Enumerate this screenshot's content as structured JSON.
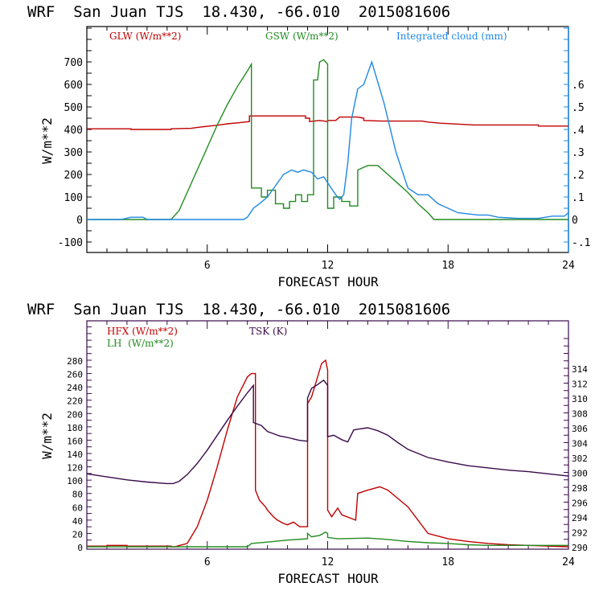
{
  "chart_data": [
    {
      "type": "line",
      "title": "WRF  San Juan TJS  18.430, -66.010  2015081606",
      "xlabel": "FORECAST HOUR",
      "ylabel": "W/m**2",
      "xlim": [
        0,
        24
      ],
      "ylim": [
        -150,
        850
      ],
      "y2lim": [
        -0.15,
        0.85
      ],
      "x_ticks": [
        "6",
        "12",
        "18",
        "24"
      ],
      "x_tick_values": [
        6,
        12,
        18,
        24
      ],
      "y_ticks": [
        "-100",
        "0",
        "100",
        "200",
        "300",
        "400",
        "500",
        "600",
        "700"
      ],
      "y_tick_values": [
        -100,
        0,
        100,
        200,
        300,
        400,
        500,
        600,
        700
      ],
      "y2_ticks": [
        "-.1",
        "0",
        ".1",
        ".2",
        ".3",
        ".4",
        ".5",
        ".6"
      ],
      "y2_tick_values": [
        -0.1,
        0,
        0.1,
        0.2,
        0.3,
        0.4,
        0.5,
        0.6
      ],
      "grid": false,
      "legend_position": "top",
      "colors": {
        "GLW": "#c00000",
        "GSW": "#228b22",
        "cloud": "#1e88e5",
        "axis": "#000000",
        "right_axis": "#1e88e5"
      },
      "series": [
        {
          "name": "GLW (W/m**2)",
          "key": "GLW",
          "axis": "left",
          "x": [
            0,
            2.2,
            2.2,
            4.2,
            4.2,
            5.2,
            5.6,
            6.1,
            6.6,
            7.0,
            7.6,
            8.1,
            8.1,
            10.9,
            10.9,
            11.1,
            11.1,
            11.6,
            12.0,
            12.0,
            12.4,
            12.6,
            13.5,
            13.8,
            13.8,
            14.7,
            16.7,
            17.0,
            17.6,
            19.3,
            22.5,
            22.5,
            24
          ],
          "y": [
            403,
            403,
            400,
            400,
            403,
            405,
            410,
            415,
            420,
            425,
            430,
            435,
            460,
            460,
            450,
            450,
            435,
            440,
            435,
            440,
            440,
            455,
            455,
            450,
            440,
            437,
            437,
            433,
            428,
            420,
            420,
            415,
            415
          ]
        },
        {
          "name": "GSW (W/m**2)",
          "key": "GSW",
          "axis": "left",
          "x": [
            0,
            4.2,
            4.6,
            5.0,
            5.5,
            6.0,
            6.5,
            7.0,
            7.5,
            8.0,
            8.2,
            8.2,
            8.7,
            8.7,
            9.0,
            9.0,
            9.4,
            9.4,
            9.8,
            9.8,
            10.1,
            10.1,
            10.4,
            10.4,
            10.7,
            10.7,
            11.0,
            11.0,
            11.3,
            11.3,
            11.5,
            11.6,
            11.8,
            11.9,
            12.0,
            12.0,
            12.3,
            12.3,
            12.7,
            12.7,
            13.1,
            13.1,
            13.5,
            13.5,
            14.0,
            14.5,
            15.0,
            15.5,
            16.0,
            16.5,
            17.0,
            17.3,
            24
          ],
          "y": [
            0,
            0,
            40,
            120,
            220,
            320,
            420,
            510,
            590,
            660,
            690,
            140,
            140,
            100,
            100,
            130,
            130,
            70,
            70,
            50,
            50,
            80,
            80,
            110,
            110,
            80,
            80,
            110,
            110,
            620,
            620,
            700,
            710,
            700,
            690,
            50,
            50,
            100,
            100,
            80,
            80,
            60,
            60,
            220,
            240,
            240,
            200,
            160,
            120,
            70,
            30,
            0,
            0
          ]
        },
        {
          "name": "Integrated cloud (mm)",
          "key": "cloud",
          "axis": "right",
          "x": [
            0,
            1.7,
            2.2,
            2.4,
            2.8,
            3.0,
            7.8,
            8.0,
            8.3,
            8.6,
            9.0,
            9.4,
            9.8,
            10.2,
            10.5,
            10.8,
            11.2,
            11.5,
            11.8,
            12.1,
            12.4,
            12.6,
            12.8,
            13.0,
            13.2,
            13.5,
            13.8,
            14.2,
            14.8,
            15.4,
            16.0,
            16.5,
            17.0,
            17.5,
            18.5,
            19.5,
            20.0,
            20.5,
            21.5,
            22.5,
            23.2,
            23.8,
            24
          ],
          "y": [
            0,
            0,
            0.01,
            0.01,
            0.01,
            0,
            0,
            0.01,
            0.05,
            0.07,
            0.1,
            0.15,
            0.2,
            0.22,
            0.21,
            0.22,
            0.21,
            0.18,
            0.19,
            0.15,
            0.11,
            0.09,
            0.11,
            0.25,
            0.45,
            0.58,
            0.6,
            0.7,
            0.52,
            0.3,
            0.14,
            0.11,
            0.11,
            0.07,
            0.03,
            0.02,
            0.02,
            0.01,
            0.005,
            0.005,
            0.015,
            0.015,
            0.03
          ]
        }
      ]
    },
    {
      "type": "line",
      "title": "WRF  San Juan TJS  18.430, -66.010  2015081606",
      "xlabel": "FORECAST HOUR",
      "ylabel": "W/m**2",
      "xlim": [
        0,
        24
      ],
      "ylim": [
        0,
        340
      ],
      "y2lim": [
        290,
        318
      ],
      "x_ticks": [
        "6",
        "12",
        "18",
        "24"
      ],
      "x_tick_values": [
        6,
        12,
        18,
        24
      ],
      "y_ticks": [
        "0",
        "20",
        "40",
        "60",
        "80",
        "100",
        "120",
        "140",
        "160",
        "180",
        "200",
        "220",
        "240",
        "260",
        "280"
      ],
      "y_tick_values": [
        0,
        20,
        40,
        60,
        80,
        100,
        120,
        140,
        160,
        180,
        200,
        220,
        240,
        260,
        280
      ],
      "y2_ticks": [
        "290",
        "292",
        "294",
        "296",
        "298",
        "300",
        "302",
        "304",
        "306",
        "308",
        "310",
        "312",
        "314"
      ],
      "y2_tick_values": [
        290,
        292,
        294,
        296,
        298,
        300,
        302,
        304,
        306,
        308,
        310,
        312,
        314
      ],
      "grid": false,
      "legend_position": "top-left",
      "colors": {
        "HFX": "#c00000",
        "LH": "#228b22",
        "TSK": "#3a0a4a",
        "axis": "#3a0a4a"
      },
      "series": [
        {
          "name": "HFX (W/m**2)",
          "key": "HFX",
          "axis": "left",
          "x": [
            0,
            1.0,
            1.0,
            2.0,
            2.0,
            4.2,
            4.2,
            4.5,
            4.5,
            5.0,
            5.5,
            6.0,
            6.5,
            7.0,
            7.5,
            8.0,
            8.2,
            8.4,
            8.4,
            8.6,
            8.9,
            9.0,
            9.3,
            9.5,
            9.8,
            10.0,
            10.3,
            10.6,
            11.0,
            11.0,
            11.2,
            11.5,
            11.7,
            11.9,
            12.0,
            12.0,
            12.2,
            12.5,
            12.7,
            13.4,
            13.5,
            14.0,
            14.6,
            15.0,
            16.0,
            17.0,
            18.0,
            19.0,
            20.0,
            21.0,
            22.0,
            24
          ],
          "y": [
            1,
            1,
            2,
            2,
            1,
            1,
            0,
            0,
            1,
            5,
            30,
            70,
            120,
            175,
            225,
            255,
            260,
            260,
            85,
            70,
            60,
            55,
            45,
            40,
            35,
            33,
            37,
            30,
            30,
            215,
            225,
            255,
            275,
            280,
            265,
            55,
            45,
            58,
            48,
            40,
            80,
            85,
            90,
            85,
            60,
            20,
            12,
            8,
            5,
            3,
            2,
            0
          ]
        },
        {
          "name": "LH  (W/m**2)",
          "key": "LH",
          "axis": "left",
          "x": [
            0,
            8.0,
            8.2,
            9.0,
            10.0,
            11.0,
            11.0,
            11.2,
            11.6,
            11.9,
            12.0,
            12.0,
            12.5,
            14.0,
            15.0,
            16.0,
            17.0,
            18.0,
            19.0,
            20.0,
            21.0,
            24
          ],
          "y": [
            0,
            0,
            5,
            7,
            10,
            12,
            20,
            15,
            17,
            22,
            20,
            14,
            12,
            13,
            11,
            8,
            6,
            5,
            3,
            2,
            2,
            2
          ]
        },
        {
          "name": "TSK (K)",
          "key": "TSK",
          "axis": "right",
          "x": [
            0,
            1.0,
            2.0,
            3.0,
            4.0,
            4.3,
            4.6,
            5.0,
            5.5,
            6.0,
            6.5,
            7.0,
            7.5,
            8.0,
            8.3,
            8.3,
            8.7,
            9.0,
            9.3,
            9.6,
            10.0,
            10.3,
            10.6,
            11.0,
            11.0,
            11.2,
            11.5,
            11.8,
            12.0,
            12.0,
            12.3,
            12.7,
            13.0,
            13.3,
            13.5,
            14.0,
            14.5,
            15.0,
            15.5,
            16.0,
            17.0,
            18.0,
            19.0,
            20.0,
            21.0,
            22.0,
            23.0,
            24
          ],
          "y": [
            299.8,
            299.4,
            299.0,
            298.7,
            298.5,
            298.5,
            298.8,
            299.7,
            301.2,
            303.0,
            305.0,
            307.0,
            308.9,
            310.7,
            311.7,
            306.7,
            306.3,
            305.5,
            305.2,
            304.9,
            304.7,
            304.5,
            304.3,
            304.2,
            310.0,
            311.3,
            311.8,
            312.4,
            311.7,
            304.8,
            305.0,
            304.4,
            304.1,
            305.7,
            305.8,
            306.0,
            305.6,
            305.0,
            304.0,
            303.1,
            302.0,
            301.4,
            300.9,
            300.6,
            300.3,
            300.1,
            299.8,
            299.5
          ]
        }
      ]
    }
  ]
}
